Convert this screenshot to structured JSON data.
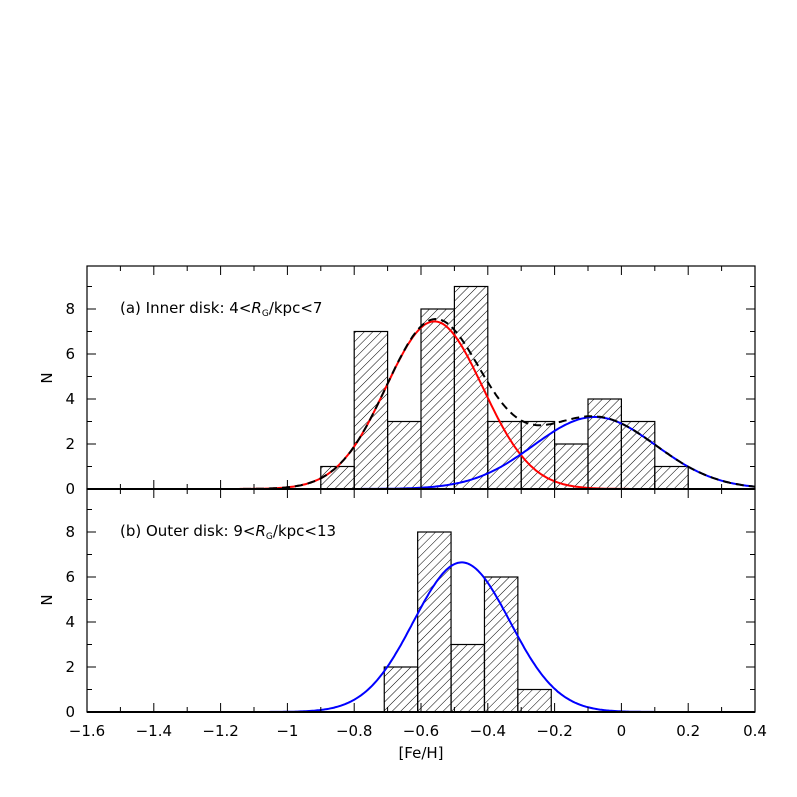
{
  "chart_data": [
    {
      "type": "bar",
      "panel": "top",
      "annotation": {
        "prefix": "(a) Inner disk: 4<",
        "var": "R",
        "sub": "G",
        "suffix": "/kpc<7"
      },
      "xlabel": "[Fe/H]",
      "ylabel": "N",
      "xlim": [
        -1.6,
        0.4
      ],
      "ylim": [
        0,
        9.9
      ],
      "yticks": [
        "0",
        "2",
        "4",
        "6",
        "8"
      ],
      "histogram": {
        "bin_edges": [
          -0.9,
          -0.8,
          -0.7,
          -0.6,
          -0.5,
          -0.4,
          -0.3,
          -0.2,
          -0.1,
          0.0,
          0.1,
          0.2
        ],
        "counts": [
          1,
          7,
          3,
          8,
          9,
          3,
          3,
          2,
          4,
          3,
          1
        ],
        "fill": "hatched"
      },
      "curves": [
        {
          "kind": "gaussian",
          "color": "#ff0000",
          "amplitude": 7.45,
          "mean": -0.56,
          "sigma": 0.145,
          "style": "solid"
        },
        {
          "kind": "gaussian",
          "color": "#0000ff",
          "amplitude": 3.2,
          "mean": -0.08,
          "sigma": 0.183,
          "style": "solid"
        },
        {
          "kind": "sum",
          "color": "#000000",
          "style": "dashed"
        }
      ]
    },
    {
      "type": "bar",
      "panel": "bottom",
      "annotation": {
        "prefix": "(b) Outer disk: 9<",
        "var": "R",
        "sub": "G",
        "suffix": "/kpc<13"
      },
      "xlabel": "[Fe/H]",
      "ylabel": "N",
      "xlim": [
        -1.6,
        0.4
      ],
      "ylim": [
        0,
        9.9
      ],
      "yticks": [
        "0",
        "2",
        "4",
        "6",
        "8"
      ],
      "xticks": [
        "−1.6",
        "−1.4",
        "−1.2",
        "−1",
        "−0.8",
        "−0.6",
        "−0.4",
        "−0.2",
        "0",
        "0.2",
        "0.4"
      ],
      "histogram": {
        "bin_edges": [
          -0.71,
          -0.61,
          -0.51,
          -0.41,
          -0.31,
          -0.21
        ],
        "counts": [
          2,
          8,
          3,
          6,
          1
        ],
        "fill": "hatched"
      },
      "curves": [
        {
          "kind": "gaussian",
          "color": "#0000ff",
          "amplitude": 6.65,
          "mean": -0.478,
          "sigma": 0.144,
          "style": "solid"
        }
      ]
    }
  ]
}
